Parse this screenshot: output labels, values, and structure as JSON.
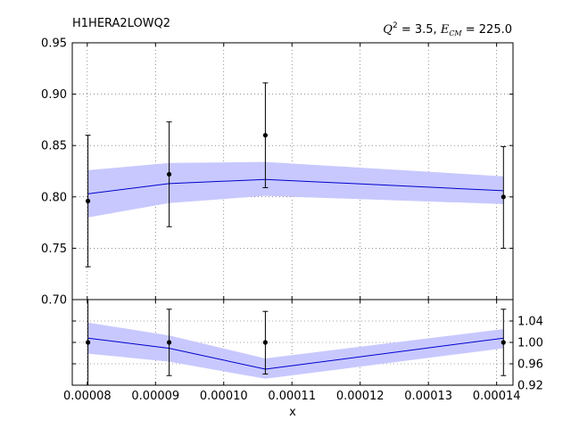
{
  "chart_data": {
    "title": "H1HERA2LOWQ2",
    "subtitle": {
      "q_symbol": "Q",
      "q_power": "2",
      "q_value": " = 3.5, ",
      "e_symbol": "E",
      "e_sub": "CM",
      "e_value": " = 225.0"
    },
    "xlabel": "x",
    "x_ticks": [
      "0.00008",
      "0.00009",
      "0.00010",
      "0.00011",
      "0.00012",
      "0.00013",
      "0.00014"
    ],
    "x_tick_values": [
      8e-05,
      9e-05,
      0.0001,
      0.00011,
      0.00012,
      0.00013,
      0.00014
    ],
    "xlim": [
      7.78e-05,
      0.0001424
    ],
    "grid": true,
    "colors": {
      "band": "#c8c8ff",
      "line": "#0000cc",
      "points": "#000000"
    },
    "panels": [
      {
        "name": "main",
        "type": "line+errorbar",
        "ylim": [
          0.7,
          0.95
        ],
        "y_ticks": [
          "0.70",
          "0.75",
          "0.80",
          "0.85",
          "0.90",
          "0.95"
        ],
        "y_tick_values": [
          0.7,
          0.75,
          0.8,
          0.85,
          0.9,
          0.95
        ],
        "y_axis_side": "left",
        "theory": {
          "x": [
            8.01e-05,
            9.2e-05,
            0.0001061,
            0.000141
          ],
          "central": [
            0.803,
            0.813,
            0.817,
            0.806
          ],
          "band_low": [
            0.78,
            0.794,
            0.801,
            0.793
          ],
          "band_high": [
            0.826,
            0.833,
            0.834,
            0.82
          ]
        },
        "data": {
          "x": [
            8.01e-05,
            9.2e-05,
            0.0001061,
            0.000141
          ],
          "y": [
            0.796,
            0.822,
            0.86,
            0.8
          ],
          "err_low": [
            0.732,
            0.771,
            0.809,
            0.75
          ],
          "err_high": [
            0.86,
            0.873,
            0.911,
            0.849
          ]
        }
      },
      {
        "name": "ratio",
        "type": "line+errorbar",
        "ylim": [
          0.92,
          1.08
        ],
        "y_ticks": [
          "0.92",
          "0.96",
          "1.00",
          "1.04"
        ],
        "y_tick_values": [
          0.92,
          0.96,
          1.0,
          1.04
        ],
        "y_axis_side": "right",
        "theory": {
          "x": [
            8.01e-05,
            9.2e-05,
            0.0001061,
            0.000141
          ],
          "central": [
            1.008,
            0.989,
            0.95,
            1.008
          ],
          "band_low": [
            0.979,
            0.964,
            0.932,
            0.989
          ],
          "band_high": [
            1.037,
            1.013,
            0.97,
            1.025
          ]
        },
        "data": {
          "x": [
            8.01e-05,
            9.2e-05,
            0.0001061,
            0.000141
          ],
          "y": [
            1.0,
            1.0,
            1.0,
            1.0
          ],
          "err_low": [
            0.919,
            0.938,
            0.941,
            0.938
          ],
          "err_high": [
            1.081,
            1.062,
            1.058,
            1.062
          ]
        }
      }
    ]
  }
}
